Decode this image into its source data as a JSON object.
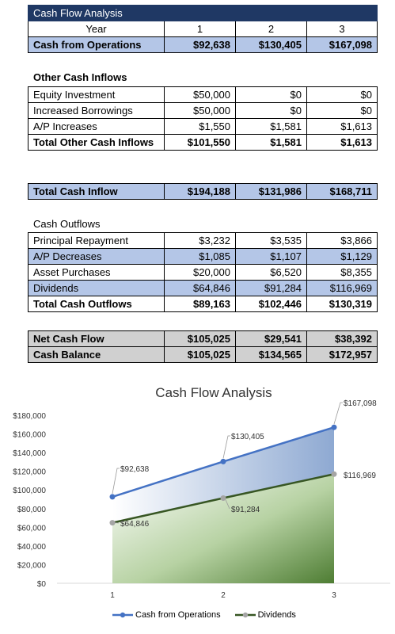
{
  "table": {
    "title": "Cash Flow Analysis",
    "year_label": "Year",
    "years": [
      "1",
      "2",
      "3"
    ],
    "cash_from_operations": {
      "label": "Cash from Operations",
      "values": [
        "$92,638",
        "$130,405",
        "$167,098"
      ]
    },
    "other_inflows_heading": "Other Cash Inflows",
    "other_inflows": [
      {
        "label": "Equity Investment",
        "values": [
          "$50,000",
          "$0",
          "$0"
        ]
      },
      {
        "label": "Increased Borrowings",
        "values": [
          "$50,000",
          "$0",
          "$0"
        ]
      },
      {
        "label": "A/P Increases",
        "values": [
          "$1,550",
          "$1,581",
          "$1,613"
        ]
      }
    ],
    "total_other_inflows": {
      "label": "Total Other Cash Inflows",
      "values": [
        "$101,550",
        "$1,581",
        "$1,613"
      ]
    },
    "total_cash_inflow": {
      "label": "Total Cash Inflow",
      "values": [
        "$194,188",
        "$131,986",
        "$168,711"
      ]
    },
    "outflows_heading": "Cash Outflows",
    "outflows": [
      {
        "label": "Principal Repayment",
        "values": [
          "$3,232",
          "$3,535",
          "$3,866"
        ]
      },
      {
        "label": "A/P Decreases",
        "values": [
          "$1,085",
          "$1,107",
          "$1,129"
        ]
      },
      {
        "label": "Asset Purchases",
        "values": [
          "$20,000",
          "$6,520",
          "$8,355"
        ]
      },
      {
        "label": "Dividends",
        "values": [
          "$64,846",
          "$91,284",
          "$116,969"
        ]
      }
    ],
    "total_outflows": {
      "label": "Total Cash Outflows",
      "values": [
        "$89,163",
        "$102,446",
        "$130,319"
      ]
    },
    "net_cash_flow": {
      "label": "Net Cash Flow",
      "values": [
        "$105,025",
        "$29,541",
        "$38,392"
      ]
    },
    "cash_balance": {
      "label": "Cash Balance",
      "values": [
        "$105,025",
        "$134,565",
        "$172,957"
      ]
    }
  },
  "chart_data": {
    "type": "area",
    "title": "Cash Flow Analysis",
    "x": [
      1,
      2,
      3
    ],
    "x_tick_labels": [
      "1",
      "2",
      "3"
    ],
    "ylim": [
      0,
      180000
    ],
    "y_ticks": [
      0,
      20000,
      40000,
      60000,
      80000,
      100000,
      120000,
      140000,
      160000,
      180000
    ],
    "y_tick_labels": [
      "$0",
      "$20,000",
      "$40,000",
      "$60,000",
      "$80,000",
      "$100,000",
      "$120,000",
      "$140,000",
      "$160,000",
      "$180,000"
    ],
    "legend_position": "bottom",
    "series": [
      {
        "name": "Cash from Operations",
        "values": [
          92638,
          130405,
          167098
        ],
        "labels": [
          "$92,638",
          "$130,405",
          "$167,098"
        ],
        "color": "#4472c4"
      },
      {
        "name": "Dividends",
        "values": [
          64846,
          91284,
          116969
        ],
        "labels": [
          "$64,846",
          "$91,284",
          "$116,969"
        ],
        "color": "#375623"
      }
    ]
  }
}
